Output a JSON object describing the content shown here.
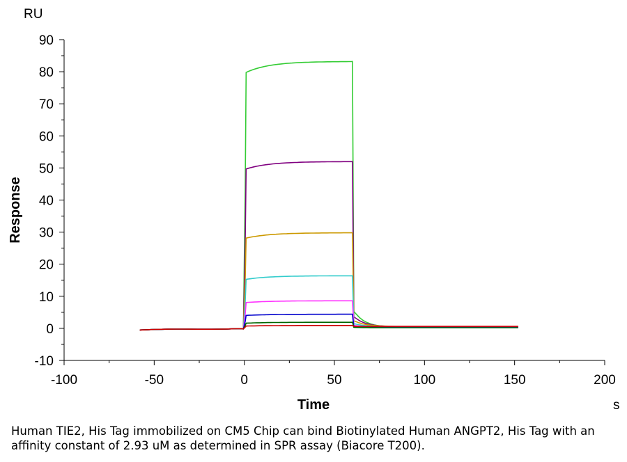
{
  "chart_data": {
    "type": "line",
    "ylabel": "Response",
    "xlabel": "Time",
    "y_unit": "RU",
    "x_unit": "s",
    "xlim": [
      -100,
      200
    ],
    "ylim": [
      -10,
      90
    ],
    "x_ticks": [
      -100,
      -50,
      0,
      50,
      100,
      150,
      200
    ],
    "y_ticks": [
      -10,
      0,
      10,
      20,
      30,
      40,
      50,
      60,
      70,
      80,
      90
    ],
    "grid": false,
    "legend": "none",
    "series": [
      {
        "color": "#33cc33",
        "plateau": 83.2,
        "start": 79.5,
        "tail": 0.3
      },
      {
        "color": "#800080",
        "plateau": 52.0,
        "start": 49.5,
        "tail": 0.5
      },
      {
        "color": "#cc9900",
        "plateau": 29.8,
        "start": 28.0,
        "tail": 0.6
      },
      {
        "color": "#33cccc",
        "plateau": 16.4,
        "start": 15.2,
        "tail": 0.5
      },
      {
        "color": "#ff33ff",
        "plateau": 8.6,
        "start": 8.0,
        "tail": 0.4
      },
      {
        "color": "#0000cc",
        "plateau": 4.4,
        "start": 4.0,
        "tail": 0.3
      },
      {
        "color": "#006600",
        "plateau": 1.9,
        "start": 1.6,
        "tail": 0.2
      },
      {
        "color": "#cc0000",
        "plateau": 0.9,
        "start": 0.7,
        "tail": 0.6
      }
    ]
  },
  "caption": "Human TIE2, His Tag immobilized on CM5 Chip can bind Biotinylated Human ANGPT2, His Tag with an affinity constant of 2.93 uM as determined in SPR assay (Biacore T200)."
}
